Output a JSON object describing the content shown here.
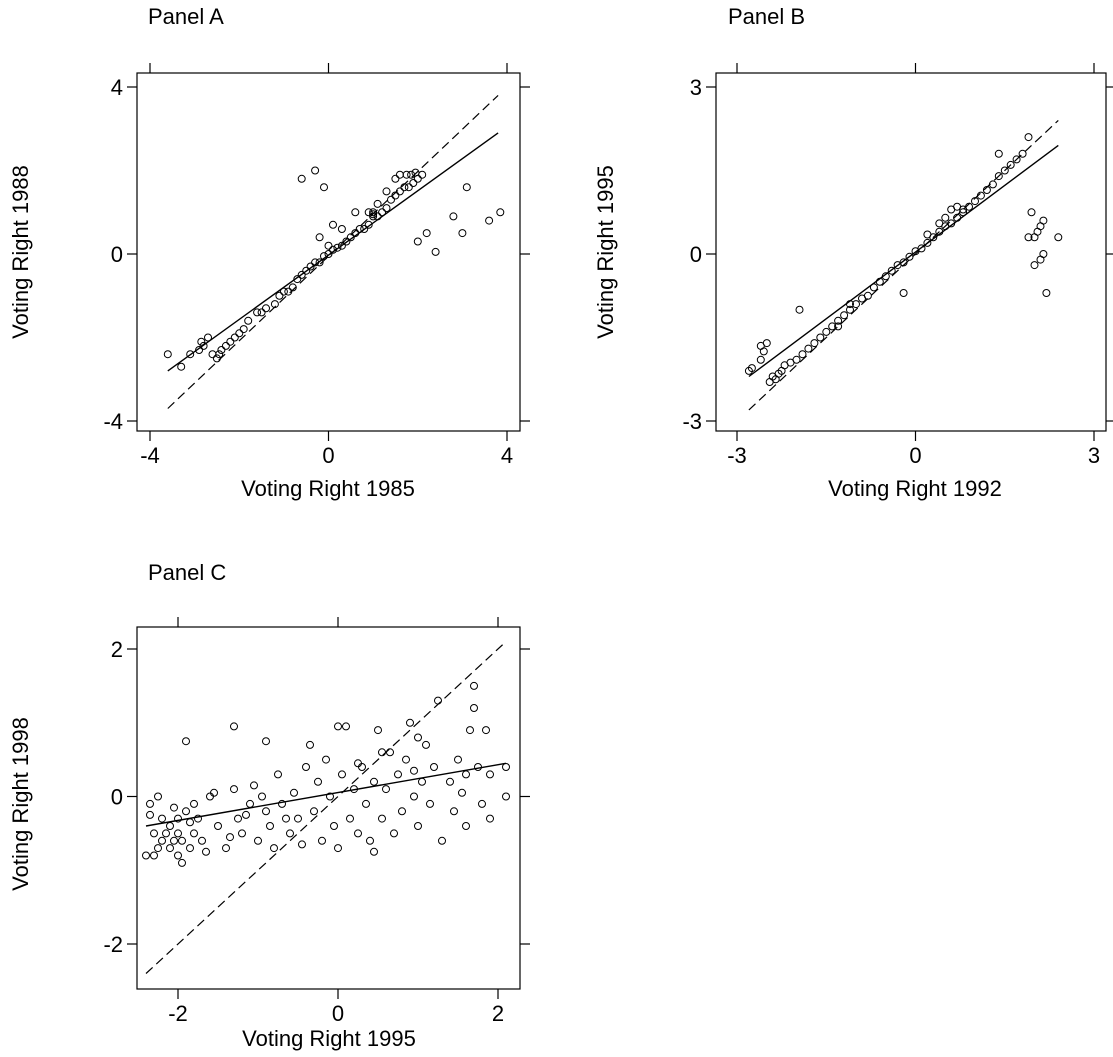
{
  "chart_data": [
    {
      "type": "scatter",
      "title": "Panel A",
      "xlabel": "Voting Right 1985",
      "ylabel": "Voting Right 1988",
      "xlim": [
        -4,
        4
      ],
      "ylim": [
        -4,
        4
      ],
      "xticks": [
        "-4",
        "0",
        "4"
      ],
      "yticks": [
        "-4",
        "0",
        "4"
      ],
      "grid": false,
      "lines": [
        {
          "style": "solid",
          "x": [
            -3.6,
            3.8
          ],
          "y": [
            -2.8,
            2.9
          ]
        },
        {
          "style": "dashed",
          "x": [
            -3.6,
            3.8
          ],
          "y": [
            -3.7,
            3.8
          ]
        }
      ],
      "points": [
        [
          -3.6,
          -2.4
        ],
        [
          -3.3,
          -2.7
        ],
        [
          -3.1,
          -2.4
        ],
        [
          -2.9,
          -2.3
        ],
        [
          -2.85,
          -2.1
        ],
        [
          -2.8,
          -2.2
        ],
        [
          -2.7,
          -2.0
        ],
        [
          -2.6,
          -2.4
        ],
        [
          -2.5,
          -2.5
        ],
        [
          -2.45,
          -2.4
        ],
        [
          -2.4,
          -2.3
        ],
        [
          -2.3,
          -2.2
        ],
        [
          -2.2,
          -2.1
        ],
        [
          -2.1,
          -2.0
        ],
        [
          -2.0,
          -1.9
        ],
        [
          -1.9,
          -1.8
        ],
        [
          -1.8,
          -1.6
        ],
        [
          -1.6,
          -1.4
        ],
        [
          -1.5,
          -1.4
        ],
        [
          -1.4,
          -1.3
        ],
        [
          -1.2,
          -1.2
        ],
        [
          -1.1,
          -1.0
        ],
        [
          -1.0,
          -0.9
        ],
        [
          -0.9,
          -0.9
        ],
        [
          -0.8,
          -0.8
        ],
        [
          -0.7,
          -0.6
        ],
        [
          -0.6,
          -0.5
        ],
        [
          -0.5,
          -0.4
        ],
        [
          -0.4,
          -0.3
        ],
        [
          -0.3,
          -0.2
        ],
        [
          -0.2,
          -0.2
        ],
        [
          -0.1,
          -0.05
        ],
        [
          0.0,
          0.0
        ],
        [
          0.1,
          0.1
        ],
        [
          0.2,
          0.15
        ],
        [
          0.3,
          0.2
        ],
        [
          0.4,
          0.3
        ],
        [
          0.5,
          0.4
        ],
        [
          0.6,
          0.5
        ],
        [
          0.7,
          0.6
        ],
        [
          0.8,
          0.6
        ],
        [
          0.9,
          0.7
        ],
        [
          1.0,
          0.9
        ],
        [
          1.1,
          0.9
        ],
        [
          1.2,
          1.0
        ],
        [
          1.3,
          1.1
        ],
        [
          1.4,
          1.3
        ],
        [
          1.5,
          1.4
        ],
        [
          1.6,
          1.5
        ],
        [
          1.7,
          1.6
        ],
        [
          1.8,
          1.6
        ],
        [
          1.9,
          1.7
        ],
        [
          2.0,
          1.8
        ],
        [
          2.1,
          1.9
        ],
        [
          1.6,
          1.9
        ],
        [
          1.75,
          1.9
        ],
        [
          1.85,
          1.9
        ],
        [
          1.95,
          1.95
        ],
        [
          1.5,
          1.8
        ],
        [
          1.3,
          1.5
        ],
        [
          -0.6,
          1.8
        ],
        [
          -0.3,
          2.0
        ],
        [
          -0.1,
          1.6
        ],
        [
          0.1,
          0.7
        ],
        [
          0.3,
          0.6
        ],
        [
          0.6,
          1.0
        ],
        [
          -0.2,
          0.4
        ],
        [
          0.0,
          0.2
        ],
        [
          0.9,
          1.0
        ],
        [
          1.1,
          1.2
        ],
        [
          1.0,
          1.0
        ],
        [
          2.2,
          0.5
        ],
        [
          2.0,
          0.3
        ],
        [
          2.4,
          0.05
        ],
        [
          2.8,
          0.9
        ],
        [
          3.0,
          0.5
        ],
        [
          3.1,
          1.6
        ],
        [
          3.6,
          0.8
        ],
        [
          3.85,
          1.0
        ],
        [
          1.0,
          0.95
        ]
      ]
    },
    {
      "type": "scatter",
      "title": "Panel B",
      "xlabel": "Voting Right 1992",
      "ylabel": "Voting Right 1995",
      "xlim": [
        -3,
        3
      ],
      "ylim": [
        -3,
        3
      ],
      "xticks": [
        "-3",
        "0",
        "3"
      ],
      "yticks": [
        "-3",
        "0",
        "3"
      ],
      "grid": false,
      "lines": [
        {
          "style": "solid",
          "x": [
            -2.8,
            2.4
          ],
          "y": [
            -2.2,
            1.95
          ]
        },
        {
          "style": "dashed",
          "x": [
            -2.8,
            2.4
          ],
          "y": [
            -2.8,
            2.4
          ]
        }
      ],
      "points": [
        [
          -2.8,
          -2.1
        ],
        [
          -2.75,
          -2.05
        ],
        [
          -2.6,
          -1.9
        ],
        [
          -2.55,
          -1.75
        ],
        [
          -2.5,
          -1.6
        ],
        [
          -2.6,
          -1.65
        ],
        [
          -2.45,
          -2.3
        ],
        [
          -2.4,
          -2.2
        ],
        [
          -2.35,
          -2.25
        ],
        [
          -2.3,
          -2.15
        ],
        [
          -2.25,
          -2.1
        ],
        [
          -2.2,
          -2.0
        ],
        [
          -2.1,
          -1.95
        ],
        [
          -2.0,
          -1.9
        ],
        [
          -1.95,
          -1.0
        ],
        [
          -1.9,
          -1.8
        ],
        [
          -1.8,
          -1.7
        ],
        [
          -1.7,
          -1.6
        ],
        [
          -1.6,
          -1.5
        ],
        [
          -1.5,
          -1.4
        ],
        [
          -1.4,
          -1.3
        ],
        [
          -1.3,
          -1.2
        ],
        [
          -1.2,
          -1.1
        ],
        [
          -1.1,
          -1.0
        ],
        [
          -1.0,
          -0.9
        ],
        [
          -0.9,
          -0.8
        ],
        [
          -0.8,
          -0.75
        ],
        [
          -0.7,
          -0.6
        ],
        [
          -0.6,
          -0.5
        ],
        [
          -0.5,
          -0.4
        ],
        [
          -0.4,
          -0.3
        ],
        [
          -0.3,
          -0.2
        ],
        [
          -0.2,
          -0.15
        ],
        [
          -0.1,
          -0.05
        ],
        [
          0.0,
          0.05
        ],
        [
          0.1,
          0.1
        ],
        [
          0.2,
          0.2
        ],
        [
          0.3,
          0.3
        ],
        [
          0.4,
          0.4
        ],
        [
          0.5,
          0.5
        ],
        [
          0.6,
          0.55
        ],
        [
          0.7,
          0.65
        ],
        [
          0.8,
          0.75
        ],
        [
          0.9,
          0.85
        ],
        [
          1.0,
          0.95
        ],
        [
          1.1,
          1.05
        ],
        [
          1.2,
          1.15
        ],
        [
          1.3,
          1.25
        ],
        [
          1.4,
          1.4
        ],
        [
          1.5,
          1.5
        ],
        [
          1.6,
          1.6
        ],
        [
          1.7,
          1.7
        ],
        [
          1.8,
          1.8
        ],
        [
          1.9,
          2.1
        ],
        [
          1.4,
          1.8
        ],
        [
          0.6,
          0.8
        ],
        [
          0.7,
          0.85
        ],
        [
          0.4,
          0.55
        ],
        [
          0.2,
          0.35
        ],
        [
          -0.2,
          -0.7
        ],
        [
          1.9,
          0.3
        ],
        [
          1.95,
          0.75
        ],
        [
          2.0,
          0.3
        ],
        [
          2.05,
          0.4
        ],
        [
          2.1,
          0.5
        ],
        [
          2.15,
          0.6
        ],
        [
          2.0,
          -0.2
        ],
        [
          2.1,
          -0.1
        ],
        [
          2.15,
          0.0
        ],
        [
          2.2,
          -0.7
        ],
        [
          2.4,
          0.3
        ],
        [
          -1.3,
          -1.3
        ],
        [
          -1.1,
          -0.9
        ],
        [
          0.5,
          0.65
        ],
        [
          0.8,
          0.8
        ]
      ]
    },
    {
      "type": "scatter",
      "title": "Panel C",
      "xlabel": "Voting Right 1995",
      "ylabel": "Voting Right 1998",
      "xlim": [
        -2.5,
        2.2
      ],
      "ylim": [
        -2.5,
        2.3
      ],
      "xticks": [
        "-2",
        "0",
        "2"
      ],
      "yticks": [
        "-2",
        "0",
        "2"
      ],
      "grid": false,
      "lines": [
        {
          "style": "solid",
          "x": [
            -2.4,
            2.1
          ],
          "y": [
            -0.4,
            0.45
          ]
        },
        {
          "style": "dashed",
          "x": [
            -2.4,
            2.1
          ],
          "y": [
            -2.4,
            2.1
          ]
        }
      ],
      "points": [
        [
          -2.35,
          -0.1
        ],
        [
          -2.3,
          -0.5
        ],
        [
          -2.3,
          -0.8
        ],
        [
          -2.25,
          -0.7
        ],
        [
          -2.2,
          -0.6
        ],
        [
          -2.2,
          -0.3
        ],
        [
          -2.15,
          -0.5
        ],
        [
          -2.1,
          -0.7
        ],
        [
          -2.1,
          -0.4
        ],
        [
          -2.05,
          -0.6
        ],
        [
          -2.0,
          -0.8
        ],
        [
          -2.0,
          -0.3
        ],
        [
          -2.0,
          -0.5
        ],
        [
          -1.95,
          -0.9
        ],
        [
          -1.95,
          -0.6
        ],
        [
          -1.9,
          0.75
        ],
        [
          -1.9,
          -0.2
        ],
        [
          -1.85,
          -0.7
        ],
        [
          -1.8,
          -0.1
        ],
        [
          -1.8,
          -0.5
        ],
        [
          -1.75,
          -0.3
        ],
        [
          -1.7,
          -0.6
        ],
        [
          -1.6,
          0.0
        ],
        [
          -1.5,
          -0.4
        ],
        [
          -1.4,
          -0.7
        ],
        [
          -1.3,
          0.1
        ],
        [
          -1.3,
          0.95
        ],
        [
          -1.25,
          -0.3
        ],
        [
          -1.2,
          -0.5
        ],
        [
          -1.1,
          -0.1
        ],
        [
          -1.0,
          -0.6
        ],
        [
          -0.95,
          0.0
        ],
        [
          -0.9,
          -0.2
        ],
        [
          -0.9,
          0.75
        ],
        [
          -0.85,
          -0.4
        ],
        [
          -0.8,
          -0.7
        ],
        [
          -0.75,
          0.3
        ],
        [
          -0.7,
          -0.1
        ],
        [
          -0.6,
          -0.5
        ],
        [
          -0.5,
          -0.3
        ],
        [
          -0.4,
          0.4
        ],
        [
          -0.35,
          0.7
        ],
        [
          -0.3,
          -0.2
        ],
        [
          -0.25,
          0.2
        ],
        [
          -0.2,
          -0.6
        ],
        [
          -0.15,
          0.5
        ],
        [
          -0.1,
          0.0
        ],
        [
          0.0,
          -0.7
        ],
        [
          0.0,
          0.95
        ],
        [
          0.05,
          0.3
        ],
        [
          0.1,
          0.95
        ],
        [
          0.15,
          -0.3
        ],
        [
          0.2,
          0.1
        ],
        [
          0.25,
          -0.5
        ],
        [
          0.3,
          0.4
        ],
        [
          0.35,
          -0.1
        ],
        [
          0.4,
          -0.6
        ],
        [
          0.45,
          0.2
        ],
        [
          0.5,
          0.9
        ],
        [
          0.55,
          -0.3
        ],
        [
          0.6,
          0.1
        ],
        [
          0.65,
          0.6
        ],
        [
          0.7,
          -0.5
        ],
        [
          0.75,
          0.3
        ],
        [
          0.8,
          -0.2
        ],
        [
          0.85,
          0.5
        ],
        [
          0.9,
          1.0
        ],
        [
          0.95,
          0.0
        ],
        [
          1.0,
          -0.4
        ],
        [
          1.05,
          0.2
        ],
        [
          1.1,
          0.7
        ],
        [
          1.15,
          -0.1
        ],
        [
          1.2,
          0.4
        ],
        [
          1.25,
          1.3
        ],
        [
          1.3,
          -0.6
        ],
        [
          1.4,
          0.2
        ],
        [
          1.5,
          0.5
        ],
        [
          1.6,
          -0.4
        ],
        [
          1.65,
          0.9
        ],
        [
          1.7,
          1.5
        ],
        [
          1.7,
          1.2
        ],
        [
          1.75,
          0.4
        ],
        [
          1.8,
          -0.1
        ],
        [
          1.85,
          0.9
        ],
        [
          1.9,
          0.3
        ],
        [
          1.9,
          -0.3
        ],
        [
          2.1,
          0.0
        ],
        [
          2.1,
          0.4
        ],
        [
          1.6,
          0.3
        ],
        [
          1.0,
          0.8
        ],
        [
          -2.4,
          -0.8
        ],
        [
          -2.35,
          -0.25
        ],
        [
          -2.25,
          0.0
        ],
        [
          -2.05,
          -0.15
        ],
        [
          -1.85,
          -0.35
        ],
        [
          -1.65,
          -0.75
        ],
        [
          -1.55,
          0.05
        ],
        [
          -1.35,
          -0.55
        ],
        [
          -1.15,
          -0.25
        ],
        [
          -1.05,
          0.15
        ],
        [
          -0.65,
          -0.3
        ],
        [
          -0.55,
          0.05
        ],
        [
          -0.45,
          -0.65
        ],
        [
          -0.05,
          -0.4
        ],
        [
          0.45,
          -0.75
        ],
        [
          0.55,
          0.6
        ],
        [
          0.95,
          0.35
        ],
        [
          1.45,
          -0.2
        ],
        [
          1.55,
          0.05
        ],
        [
          0.25,
          0.45
        ]
      ]
    }
  ]
}
